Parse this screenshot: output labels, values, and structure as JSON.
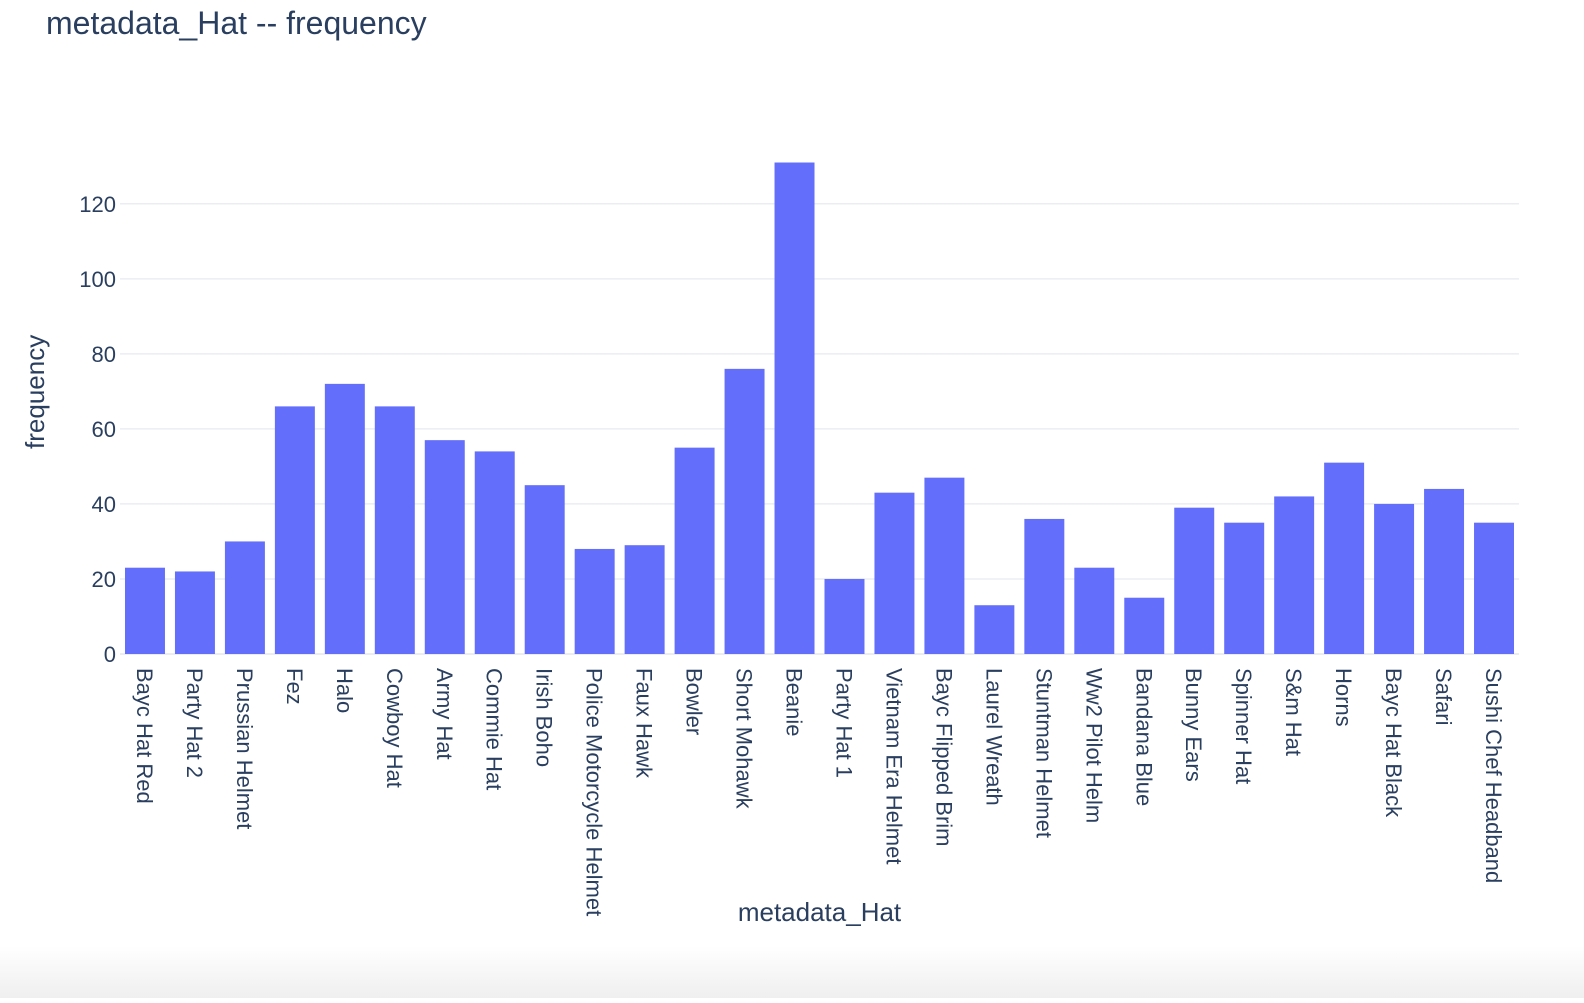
{
  "chart_data": {
    "type": "bar",
    "title": "metadata_Hat -- frequency",
    "xlabel": "metadata_Hat",
    "ylabel": "frequency",
    "ylim": [
      0,
      137
    ],
    "yticks": [
      0,
      20,
      40,
      60,
      80,
      100,
      120
    ],
    "grid": true,
    "legend": "none",
    "bar_color": "#636efa",
    "grid_color": "#ebedf2",
    "text_color": "#2a3f5f",
    "categories": [
      "Bayc Hat Red",
      "Party Hat 2",
      "Prussian Helmet",
      "Fez",
      "Halo",
      "Cowboy Hat",
      "Army Hat",
      "Commie Hat",
      "Irish Boho",
      "Police Motorcycle Helmet",
      "Faux Hawk",
      "Bowler",
      "Short Mohawk",
      "Beanie",
      "Party Hat 1",
      "Vietnam Era Helmet",
      "Bayc Flipped Brim",
      "Laurel Wreath",
      "Stuntman Helmet",
      "Ww2 Pilot Helm",
      "Bandana Blue",
      "Bunny Ears",
      "Spinner Hat",
      "S&m Hat",
      "Horns",
      "Bayc Hat Black",
      "Safari",
      "Sushi Chef Headband"
    ],
    "values": [
      23,
      22,
      30,
      66,
      72,
      66,
      57,
      54,
      45,
      28,
      29,
      55,
      76,
      131,
      20,
      43,
      47,
      13,
      36,
      23,
      15,
      39,
      35,
      42,
      51,
      40,
      44,
      35
    ]
  }
}
